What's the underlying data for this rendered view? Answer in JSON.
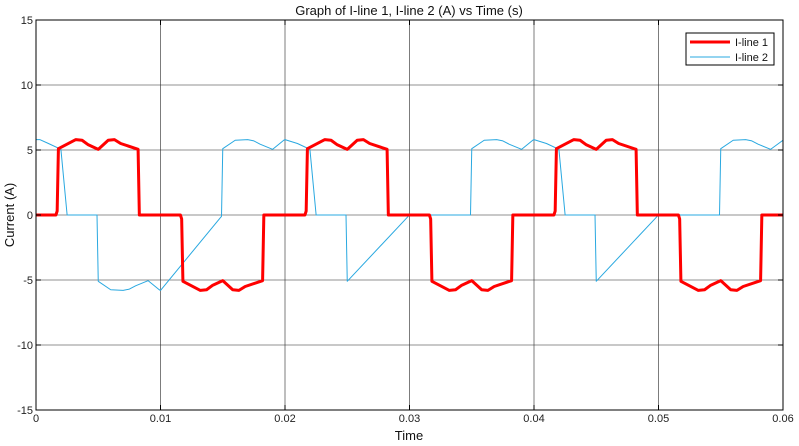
{
  "chart_data": {
    "type": "line",
    "title": "Graph of I-line 1, I-line 2 (A) vs Time (s)",
    "xlabel": "Time",
    "ylabel": "Current (A)",
    "xlim": [
      0,
      0.06
    ],
    "ylim": [
      -15,
      15
    ],
    "xticks": [
      0,
      0.01,
      0.02,
      0.03,
      0.04,
      0.05,
      0.06
    ],
    "xtick_labels": [
      "0",
      "0.01",
      "0.02",
      "0.03",
      "0.04",
      "0.05",
      "0.06"
    ],
    "yticks": [
      -15,
      -10,
      -5,
      0,
      5,
      10,
      15
    ],
    "ytick_labels": [
      "-15",
      "-10",
      "-5",
      "0",
      "5",
      "10",
      "15"
    ],
    "grid": true,
    "legend_position": "top-right",
    "series": [
      {
        "name": "I-line 1",
        "color": "#ff0000",
        "x": [
          0,
          0.0016,
          0.0017,
          0.0018,
          0.0032,
          0.0037,
          0.0042,
          0.005,
          0.0058,
          0.0063,
          0.0068,
          0.0082,
          0.0083,
          0.0116,
          0.0117,
          0.0118,
          0.0132,
          0.0137,
          0.0142,
          0.015,
          0.0158,
          0.0163,
          0.0168,
          0.0182,
          0.0183,
          0.0216,
          0.0217,
          0.0218,
          0.0232,
          0.0237,
          0.0242,
          0.025,
          0.0258,
          0.0263,
          0.0268,
          0.0282,
          0.0283,
          0.0316,
          0.0317,
          0.0318,
          0.0332,
          0.0337,
          0.0342,
          0.035,
          0.0358,
          0.0363,
          0.0368,
          0.0382,
          0.0383,
          0.0416,
          0.0417,
          0.0418,
          0.0432,
          0.0437,
          0.0442,
          0.045,
          0.0458,
          0.0463,
          0.0468,
          0.0482,
          0.0483,
          0.0516,
          0.0517,
          0.0518,
          0.0532,
          0.0537,
          0.0542,
          0.055,
          0.0558,
          0.0563,
          0.0568,
          0.0582,
          0.0583,
          0.06
        ],
        "y": [
          0,
          0,
          0.3,
          5.1,
          5.8,
          5.75,
          5.4,
          5.05,
          5.75,
          5.8,
          5.5,
          5.05,
          0,
          0,
          -0.3,
          -5.1,
          -5.8,
          -5.75,
          -5.4,
          -5.05,
          -5.75,
          -5.8,
          -5.5,
          -5.05,
          0,
          0,
          0.3,
          5.1,
          5.8,
          5.75,
          5.4,
          5.05,
          5.75,
          5.8,
          5.5,
          5.05,
          0,
          0,
          -0.3,
          -5.1,
          -5.8,
          -5.75,
          -5.4,
          -5.05,
          -5.75,
          -5.8,
          -5.5,
          -5.05,
          0,
          0,
          0.3,
          5.1,
          5.8,
          5.75,
          5.4,
          5.05,
          5.75,
          5.8,
          5.5,
          5.05,
          0,
          0,
          -0.3,
          -5.1,
          -5.8,
          -5.75,
          -5.4,
          -5.05,
          -5.75,
          -5.8,
          -5.5,
          -5.05,
          0,
          0
        ]
      },
      {
        "name": "I-line 2",
        "color": "#29a8e0",
        "x": [
          0,
          0.0003,
          0.001,
          0.002,
          0.0025,
          0.003,
          0.004,
          0.0049,
          0.005,
          0.006,
          0.007,
          0.0075,
          0.008,
          0.009,
          0.0099,
          0.01,
          0.0149,
          0.015,
          0.016,
          0.017,
          0.0175,
          0.018,
          0.019,
          0.0199,
          0.02,
          0.021,
          0.022,
          0.0225,
          0.023,
          0.024,
          0.0249,
          0.025,
          0.0299,
          0.03,
          0.031,
          0.032,
          0.0325,
          0.033,
          0.034,
          0.0349,
          0.035,
          0.036,
          0.037,
          0.0375,
          0.038,
          0.039,
          0.0399,
          0.04,
          0.041,
          0.042,
          0.0425,
          0.043,
          0.044,
          0.0449,
          0.045,
          0.0499,
          0.05,
          0.051,
          0.052,
          0.0525,
          0.053,
          0.054,
          0.0549,
          0.055,
          0.056,
          0.057,
          0.0575,
          0.058,
          0.059,
          0.06
        ],
        "y": [
          5.8,
          5.8,
          5.5,
          5.05,
          0,
          0,
          0,
          0,
          -5.1,
          -5.75,
          -5.8,
          -5.7,
          -5.45,
          -5.05,
          -5.75,
          -5.8,
          -0.1,
          5.1,
          5.75,
          5.8,
          5.7,
          5.45,
          5.05,
          5.75,
          5.8,
          5.5,
          5.05,
          0,
          0,
          0,
          0,
          -5.1,
          -0.1,
          0,
          0,
          0,
          0,
          0,
          0,
          0,
          5.1,
          5.75,
          5.8,
          5.7,
          5.45,
          5.05,
          5.75,
          5.8,
          5.5,
          5.05,
          0,
          0,
          0,
          0,
          -5.1,
          -0.1,
          0,
          0,
          0,
          0,
          0,
          0,
          0,
          5.1,
          5.75,
          5.8,
          5.7,
          5.45,
          5.05,
          5.75
        ]
      }
    ]
  }
}
